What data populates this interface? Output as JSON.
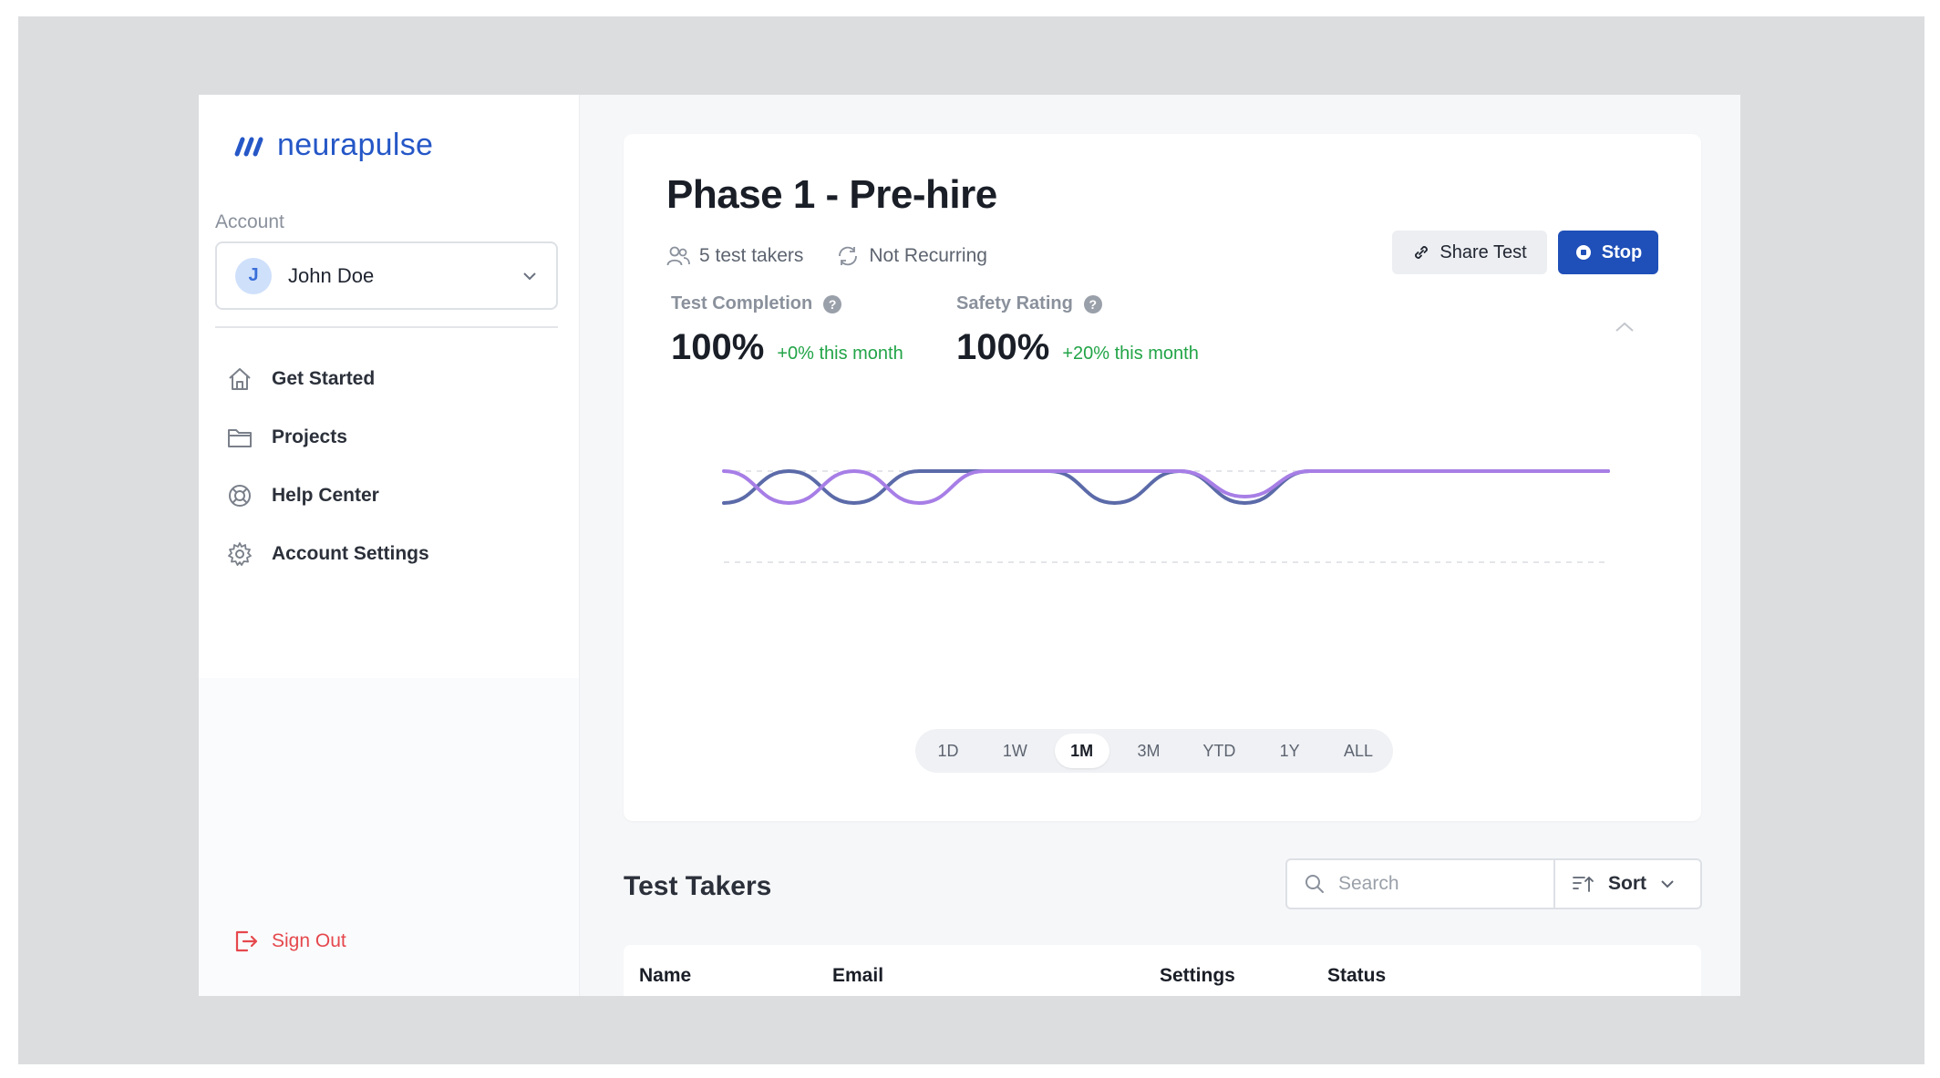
{
  "brand": {
    "name": "neurapulse",
    "color": "#2557c7"
  },
  "account": {
    "label": "Account",
    "initial": "J",
    "name": "John Doe"
  },
  "nav": [
    {
      "label": "Get Started",
      "icon": "home-icon"
    },
    {
      "label": "Projects",
      "icon": "folder-icon"
    },
    {
      "label": "Help Center",
      "icon": "lifebuoy-icon"
    },
    {
      "label": "Account Settings",
      "icon": "gear-icon"
    }
  ],
  "signout": {
    "label": "Sign Out",
    "icon": "sign-out-icon",
    "color": "#e5484d"
  },
  "test": {
    "title": "Phase 1 - Pre-hire",
    "takers": "5 test takers",
    "recurrence": "Not Recurring",
    "share_label": "Share Test",
    "stop_label": "Stop"
  },
  "metrics": [
    {
      "label": "Test Completion",
      "value": "100%",
      "delta": "+0% this month"
    },
    {
      "label": "Safety Rating",
      "value": "100%",
      "delta": "+20% this month"
    }
  ],
  "chart_data": {
    "type": "line",
    "title": "",
    "xlabel": "",
    "ylabel": "",
    "grid": "dashed horizontal",
    "series": [
      {
        "color": "#5b6aa8",
        "values": [
          95,
          100,
          95,
          100,
          100,
          100,
          95,
          100,
          95,
          100,
          100,
          100
        ]
      },
      {
        "color": "#a77ee6",
        "values": [
          100,
          95,
          100,
          95,
          100,
          100,
          100,
          100,
          96,
          100,
          100,
          100
        ]
      }
    ]
  },
  "ranges": {
    "options": [
      "1D",
      "1W",
      "1M",
      "3M",
      "YTD",
      "1Y",
      "ALL"
    ],
    "selected": "1M"
  },
  "test_takers": {
    "title": "Test Takers",
    "search_placeholder": "Search",
    "sort_label": "Sort",
    "columns": [
      "Name",
      "Email",
      "Settings",
      "Status"
    ]
  }
}
